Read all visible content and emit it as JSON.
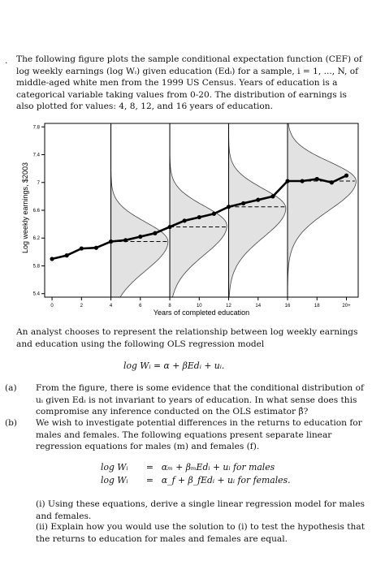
{
  "question": {
    "number": ".",
    "intro": "The following figure plots the sample conditional expectation function (CEF) of log weekly earnings (log Wᵢ) given education (Edᵢ) for a sample, i = 1, ..., N, of middle-aged white men from the 1999 US Census. Years of education is a categorical variable taking values from 0-20. The distribution of earnings is also plotted for values: 4, 8, 12, and 16 years of education.",
    "analyst": "An analyst chooses to represent the relationship between log weekly earnings and education using the following OLS regression model",
    "model_equation": "log Wᵢ = α + βEdᵢ + uᵢ.",
    "parts": [
      {
        "label": "(a)",
        "text": "From the figure, there is some evidence that the conditional distribution of uᵢ given Edᵢ is not invariant to years of education. In what sense does this compromise any inference conducted on the OLS estimator β̂?"
      },
      {
        "label": "(b)",
        "text": "We wish to investigate potential differences in the returns to education for males and females. The following equations present separate linear regression equations for males (m) and females (f)."
      }
    ],
    "equations": [
      {
        "lhs": "log Wᵢ",
        "op": "=",
        "rhs": "αₘ + βₘEdᵢ + uᵢ for males"
      },
      {
        "lhs": "log Wᵢ",
        "op": "=",
        "rhs": "α_f + β_fEdᵢ + uᵢ for females."
      }
    ],
    "sub_i": "(i) Using these equations, derive a single linear regression model for males and females.",
    "sub_ii": "(ii) Explain how you would use the solution to (i) to test the hypothesis that the returns to education for males and females are equal."
  },
  "chart_data": {
    "type": "line",
    "title": "",
    "xlabel": "Years of completed education",
    "ylabel": "Log weekly earnings, $2003",
    "xlim": [
      -0.5,
      20.8
    ],
    "ylim": [
      5.35,
      7.85
    ],
    "x_ticks": [
      0,
      2,
      4,
      6,
      8,
      10,
      12,
      14,
      16,
      18,
      20
    ],
    "x_tick_labels": [
      "0",
      "2",
      "4",
      "6",
      "8",
      "10",
      "12",
      "14",
      "16",
      "18",
      "20+"
    ],
    "y_ticks": [
      5.4,
      5.8,
      6.2,
      6.6,
      7.0,
      7.4,
      7.8
    ],
    "y_tick_labels": [
      "5.4",
      "5.8",
      "6.2",
      "6.6",
      "7",
      "7.4",
      "7.8"
    ],
    "series": [
      {
        "x": [
          0,
          1,
          2,
          3,
          4,
          5,
          6,
          7,
          8,
          9,
          10,
          11,
          12,
          13,
          14,
          15,
          16,
          17,
          18,
          19,
          20
        ],
        "values": [
          5.9,
          5.95,
          6.05,
          6.06,
          6.15,
          6.17,
          6.22,
          6.27,
          6.36,
          6.45,
          6.5,
          6.55,
          6.65,
          6.7,
          6.75,
          6.8,
          7.02,
          7.02,
          7.05,
          7.0,
          7.1
        ]
      }
    ],
    "distributions": [
      {
        "x": 4,
        "peak_y": 6.15
      },
      {
        "x": 8,
        "peak_y": 6.38
      },
      {
        "x": 12,
        "peak_y": 6.63
      },
      {
        "x": 16,
        "peak_y": 7.02
      }
    ],
    "grid": false,
    "colors": {
      "line": "#000000",
      "density_fill": "#e2e2e2",
      "density_stroke": "#444444"
    }
  }
}
